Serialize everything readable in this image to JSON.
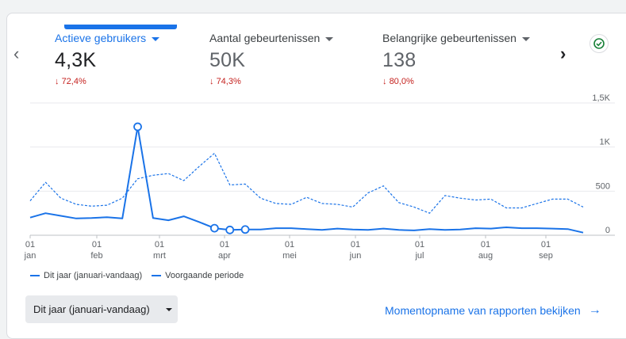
{
  "metrics": [
    {
      "label": "Actieve gebruikers",
      "value": "4,3K",
      "delta": "72,4%",
      "active": true
    },
    {
      "label": "Aantal gebeurtenissen",
      "value": "50K",
      "delta": "74,3%",
      "active": false
    },
    {
      "label": "Belangrijke gebeurtenissen",
      "value": "138",
      "delta": "80,0%",
      "active": false
    }
  ],
  "icons": {
    "prev": "chevron-left-icon",
    "next": "chevron-right-icon",
    "check": "check-circle-icon",
    "delta": "arrow-down-icon"
  },
  "colors": {
    "accent": "#1a73e8",
    "negative": "#c5221f",
    "success": "#188038"
  },
  "legend": {
    "current": "Dit jaar (januari-vandaag)",
    "previous": "Voorgaande periode"
  },
  "range_button": {
    "label": "Dit jaar (januari-vandaag)"
  },
  "snapshot_link": {
    "label": "Momentopname van rapporten bekijken"
  },
  "chart_data": {
    "type": "line",
    "y_ticks": [
      "0",
      "500",
      "1K",
      "1,5K"
    ],
    "ylim": [
      0,
      1500
    ],
    "y_axis_side": "right",
    "grid": true,
    "x_ticks": [
      {
        "day": "01",
        "month": "jan"
      },
      {
        "day": "01",
        "month": "feb"
      },
      {
        "day": "01",
        "month": "mrt"
      },
      {
        "day": "01",
        "month": "apr"
      },
      {
        "day": "01",
        "month": "mei"
      },
      {
        "day": "01",
        "month": "jun"
      },
      {
        "day": "01",
        "month": "jul"
      },
      {
        "day": "01",
        "month": "aug"
      },
      {
        "day": "01",
        "month": "sep"
      }
    ],
    "x_range": [
      0,
      36
    ],
    "series": [
      {
        "name": "Dit jaar (januari-vandaag)",
        "style": "solid",
        "points": [
          [
            0,
            200
          ],
          [
            1,
            250
          ],
          [
            2,
            220
          ],
          [
            3,
            190
          ],
          [
            4,
            195
          ],
          [
            5,
            205
          ],
          [
            6,
            190
          ],
          [
            7,
            1230
          ],
          [
            8,
            195
          ],
          [
            9,
            170
          ],
          [
            10,
            215
          ],
          [
            11,
            150
          ],
          [
            12,
            80
          ],
          [
            13,
            60
          ],
          [
            14,
            65
          ],
          [
            15,
            65
          ],
          [
            16,
            80
          ],
          [
            17,
            80
          ],
          [
            18,
            70
          ],
          [
            19,
            60
          ],
          [
            20,
            75
          ],
          [
            21,
            65
          ],
          [
            22,
            60
          ],
          [
            23,
            75
          ],
          [
            24,
            60
          ],
          [
            25,
            55
          ],
          [
            26,
            70
          ],
          [
            27,
            60
          ],
          [
            28,
            65
          ],
          [
            29,
            80
          ],
          [
            30,
            75
          ],
          [
            31,
            90
          ],
          [
            32,
            80
          ],
          [
            33,
            80
          ],
          [
            34,
            75
          ],
          [
            35,
            70
          ],
          [
            36,
            30
          ]
        ],
        "markers": [
          7,
          12,
          13,
          14
        ]
      },
      {
        "name": "Voorgaande periode",
        "style": "dashed",
        "points": [
          [
            0,
            390
          ],
          [
            1,
            600
          ],
          [
            2,
            420
          ],
          [
            3,
            350
          ],
          [
            4,
            330
          ],
          [
            5,
            340
          ],
          [
            6,
            420
          ],
          [
            7,
            640
          ],
          [
            8,
            680
          ],
          [
            9,
            700
          ],
          [
            10,
            620
          ],
          [
            11,
            780
          ],
          [
            12,
            930
          ],
          [
            13,
            570
          ],
          [
            14,
            580
          ],
          [
            15,
            420
          ],
          [
            16,
            360
          ],
          [
            17,
            350
          ],
          [
            18,
            430
          ],
          [
            19,
            360
          ],
          [
            20,
            350
          ],
          [
            21,
            320
          ],
          [
            22,
            480
          ],
          [
            23,
            560
          ],
          [
            24,
            370
          ],
          [
            25,
            320
          ],
          [
            26,
            250
          ],
          [
            27,
            450
          ],
          [
            28,
            420
          ],
          [
            29,
            400
          ],
          [
            30,
            410
          ],
          [
            31,
            310
          ],
          [
            32,
            310
          ],
          [
            33,
            360
          ],
          [
            34,
            410
          ],
          [
            35,
            410
          ],
          [
            36,
            320
          ]
        ]
      }
    ]
  }
}
